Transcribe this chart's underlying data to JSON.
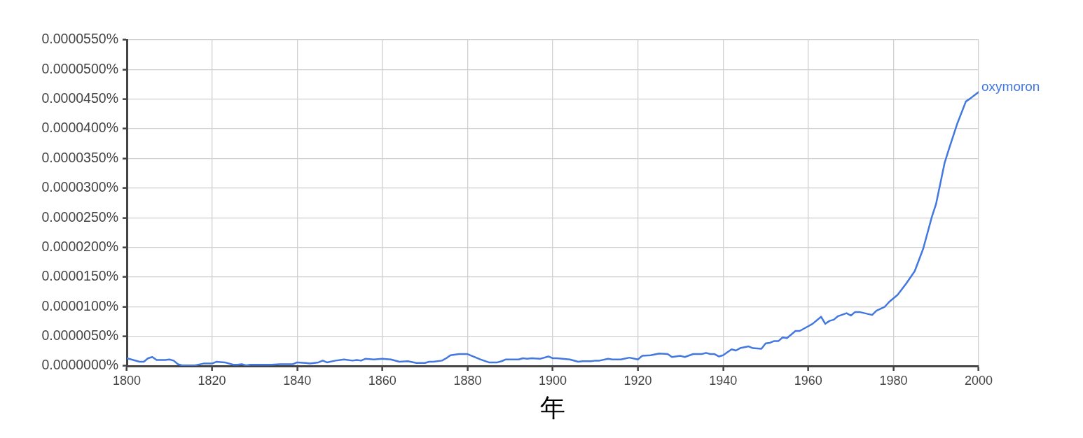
{
  "chart_data": {
    "type": "line",
    "xlabel": "年",
    "xlim": [
      1800,
      2000
    ],
    "xticks": [
      1800,
      1820,
      1840,
      1860,
      1880,
      1900,
      1920,
      1940,
      1960,
      1980,
      2000
    ],
    "ylim": [
      0,
      5.5e-05
    ],
    "yticks": [
      {
        "value": 0,
        "label": "0.0000000%"
      },
      {
        "value": 5e-06,
        "label": "0.0000050%"
      },
      {
        "value": 1e-05,
        "label": "0.0000100%"
      },
      {
        "value": 1.5e-05,
        "label": "0.0000150%"
      },
      {
        "value": 2e-05,
        "label": "0.0000200%"
      },
      {
        "value": 2.5e-05,
        "label": "0.0000250%"
      },
      {
        "value": 3e-05,
        "label": "0.0000300%"
      },
      {
        "value": 3.5e-05,
        "label": "0.0000350%"
      },
      {
        "value": 4e-05,
        "label": "0.0000400%"
      },
      {
        "value": 4.5e-05,
        "label": "0.0000450%"
      },
      {
        "value": 5e-05,
        "label": "0.0000500%"
      },
      {
        "value": 5.5e-05,
        "label": "0.0000550%"
      }
    ],
    "grid": true,
    "series": [
      {
        "name": "oxymoron",
        "color": "#4278e0",
        "x": [
          1800,
          1803,
          1804,
          1805,
          1806,
          1807,
          1809,
          1810,
          1811,
          1812,
          1813,
          1816,
          1818,
          1820,
          1821,
          1823,
          1825,
          1826,
          1827,
          1828,
          1829,
          1834,
          1836,
          1839,
          1840,
          1842,
          1843,
          1845,
          1846,
          1847,
          1849,
          1851,
          1853,
          1854,
          1855,
          1856,
          1858,
          1860,
          1862,
          1864,
          1866,
          1868,
          1870,
          1871,
          1872,
          1874,
          1875,
          1876,
          1878,
          1880,
          1881,
          1883,
          1885,
          1887,
          1888,
          1889,
          1892,
          1893,
          1894,
          1895,
          1897,
          1899,
          1900,
          1901,
          1904,
          1906,
          1907,
          1909,
          1910,
          1911,
          1913,
          1914,
          1916,
          1918,
          1920,
          1921,
          1923,
          1925,
          1927,
          1928,
          1930,
          1931,
          1933,
          1935,
          1936,
          1937,
          1938,
          1939,
          1940,
          1942,
          1943,
          1944,
          1946,
          1947,
          1949,
          1950,
          1951,
          1952,
          1953,
          1954,
          1955,
          1957,
          1958,
          1960,
          1961,
          1963,
          1964,
          1965,
          1966,
          1967,
          1969,
          1970,
          1971,
          1972,
          1975,
          1976,
          1978,
          1979,
          1981,
          1983,
          1985,
          1987,
          1989,
          1990,
          1992,
          1993,
          1995,
          1997,
          1998,
          2000
        ],
        "values": [
          1.3e-06,
          7e-07,
          7e-07,
          1.3e-06,
          1.5e-06,
          1e-06,
          1e-06,
          1.1e-06,
          9e-07,
          3e-07,
          1e-07,
          1e-07,
          4e-07,
          4e-07,
          7e-07,
          6e-07,
          2e-07,
          2e-07,
          3e-07,
          1e-07,
          2e-07,
          2e-07,
          3e-07,
          3e-07,
          6e-07,
          5e-07,
          4e-07,
          6e-07,
          9e-07,
          6e-07,
          9e-07,
          1.1e-06,
          9e-07,
          1e-06,
          9e-07,
          1.2e-06,
          1.1e-06,
          1.2e-06,
          1.1e-06,
          7e-07,
          8e-07,
          5e-07,
          5e-07,
          7e-07,
          7e-07,
          9e-07,
          1.3e-06,
          1.8e-06,
          2e-06,
          2e-06,
          1.7e-06,
          1.1e-06,
          6e-07,
          6e-07,
          8e-07,
          1.1e-06,
          1.1e-06,
          1.3e-06,
          1.2e-06,
          1.3e-06,
          1.2e-06,
          1.6e-06,
          1.3e-06,
          1.3e-06,
          1.1e-06,
          7e-07,
          8e-07,
          8e-07,
          9e-07,
          9e-07,
          1.2e-06,
          1.1e-06,
          1.1e-06,
          1.4e-06,
          1.1e-06,
          1.7e-06,
          1.8e-06,
          2.1e-06,
          2e-06,
          1.5e-06,
          1.7e-06,
          1.5e-06,
          2e-06,
          2e-06,
          2.2e-06,
          2e-06,
          2e-06,
          1.6e-06,
          1.8e-06,
          2.8e-06,
          2.6e-06,
          3e-06,
          3.3e-06,
          3e-06,
          2.9e-06,
          3.8e-06,
          3.9e-06,
          4.2e-06,
          4.2e-06,
          4.8e-06,
          4.7e-06,
          5.9e-06,
          5.9e-06,
          6.7e-06,
          7.1e-06,
          8.3e-06,
          7.1e-06,
          7.6e-06,
          7.8e-06,
          8.4e-06,
          8.9e-06,
          8.5e-06,
          9.1e-06,
          9.1e-06,
          8.6e-06,
          9.3e-06,
          1e-05,
          1.08e-05,
          1.2e-05,
          1.39e-05,
          1.6e-05,
          1.98e-05,
          2.51e-05,
          2.73e-05,
          3.42e-05,
          3.65e-05,
          4.09e-05,
          4.46e-05,
          4.51e-05,
          4.62e-05
        ]
      }
    ]
  }
}
